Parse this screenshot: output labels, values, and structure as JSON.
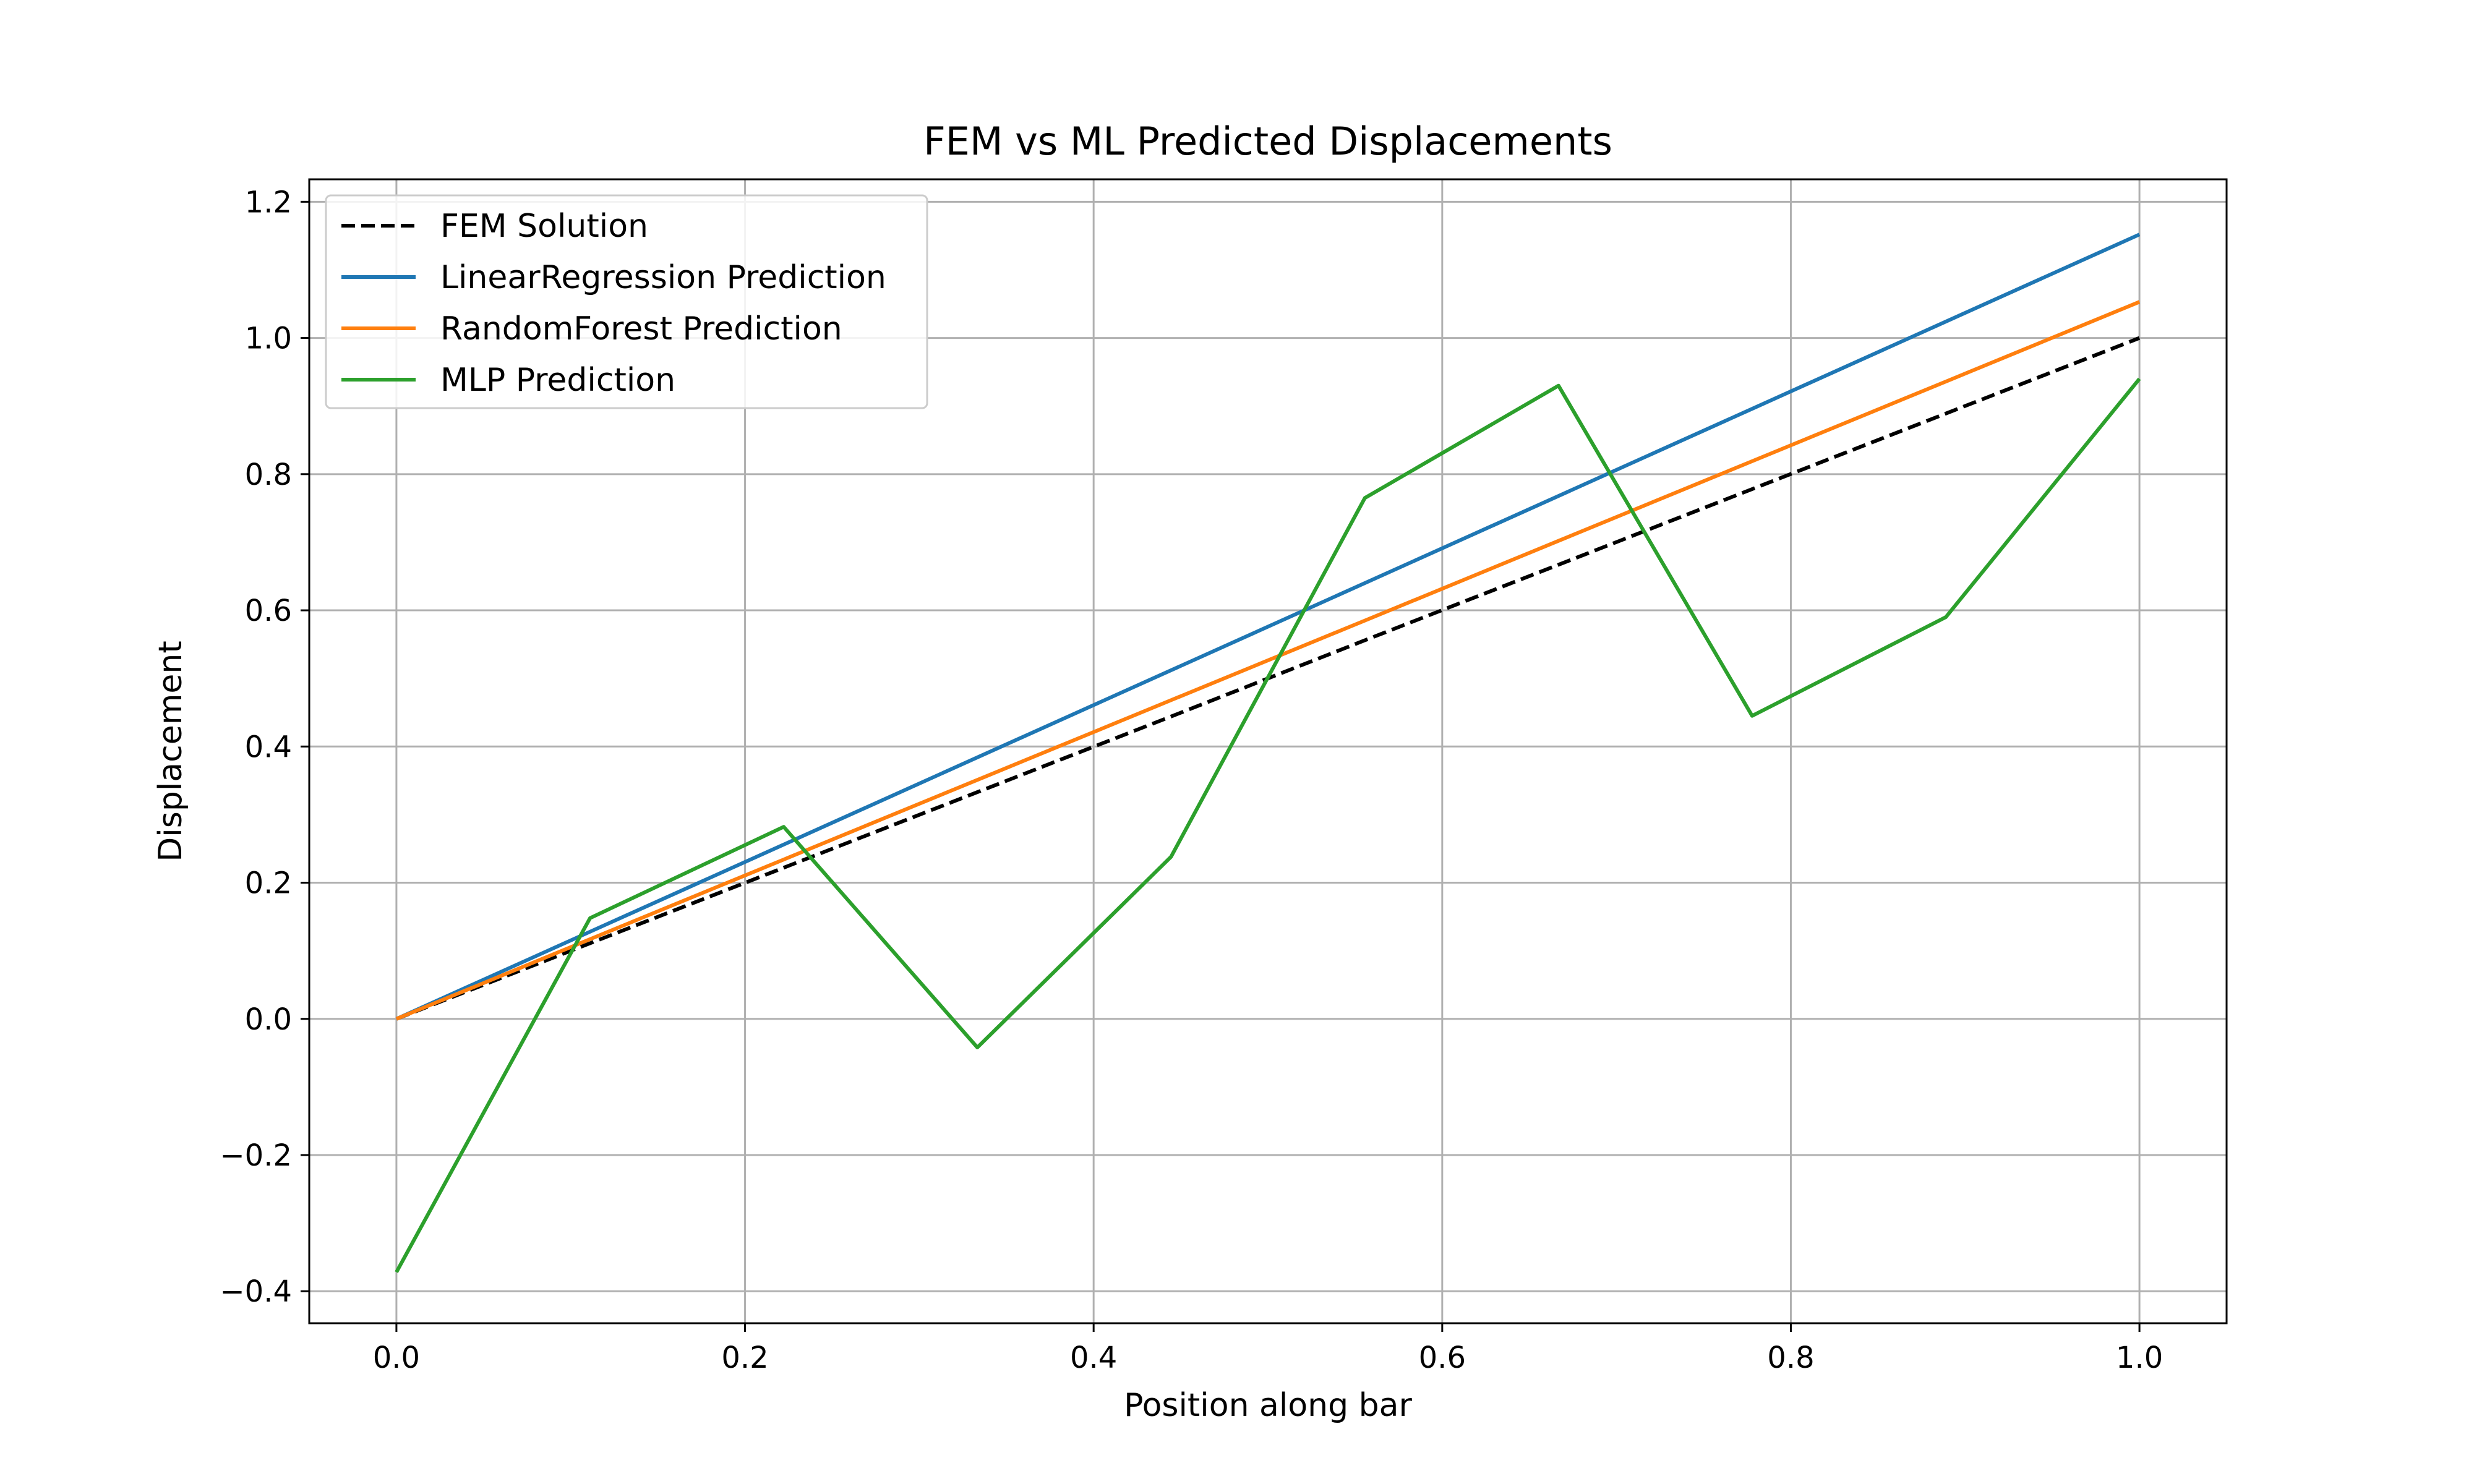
{
  "chart_data": {
    "type": "line",
    "title": "FEM vs ML Predicted Displacements",
    "xlabel": "Position along bar",
    "ylabel": "Displacement",
    "xlim": [
      -0.05,
      1.05
    ],
    "ylim": [
      -0.447,
      1.233
    ],
    "xticks": [
      0.0,
      0.2,
      0.4,
      0.6,
      0.8,
      1.0
    ],
    "xtick_labels": [
      "0.0",
      "0.2",
      "0.4",
      "0.6",
      "0.8",
      "1.0"
    ],
    "yticks": [
      -0.4,
      -0.2,
      0.0,
      0.2,
      0.4,
      0.6,
      0.8,
      1.0,
      1.2
    ],
    "ytick_labels": [
      "−0.4",
      "−0.2",
      "0.0",
      "0.2",
      "0.4",
      "0.6",
      "0.8",
      "1.0",
      "1.2"
    ],
    "grid": true,
    "legend_position": "top-left",
    "x": [
      0.0,
      0.1111,
      0.2222,
      0.3333,
      0.4444,
      0.5556,
      0.6667,
      0.7778,
      0.8889,
      1.0
    ],
    "series": [
      {
        "name": "FEM Solution",
        "color": "#000000",
        "dashed": true,
        "values": [
          0.0,
          0.111,
          0.222,
          0.333,
          0.444,
          0.556,
          0.667,
          0.778,
          0.889,
          1.0
        ]
      },
      {
        "name": "LinearRegression Prediction",
        "color": "#1f77b4",
        "dashed": false,
        "values": [
          0.0,
          0.128,
          0.256,
          0.384,
          0.512,
          0.64,
          0.768,
          0.896,
          1.024,
          1.152
        ]
      },
      {
        "name": "RandomForest Prediction",
        "color": "#ff7f0e",
        "dashed": false,
        "values": [
          0.0,
          0.117,
          0.234,
          0.351,
          0.468,
          0.585,
          0.702,
          0.819,
          0.936,
          1.053
        ]
      },
      {
        "name": "MLP Prediction",
        "color": "#2ca02c",
        "dashed": false,
        "values": [
          -0.372,
          0.148,
          0.282,
          -0.042,
          0.238,
          0.765,
          0.93,
          0.445,
          0.59,
          0.94
        ]
      }
    ]
  }
}
